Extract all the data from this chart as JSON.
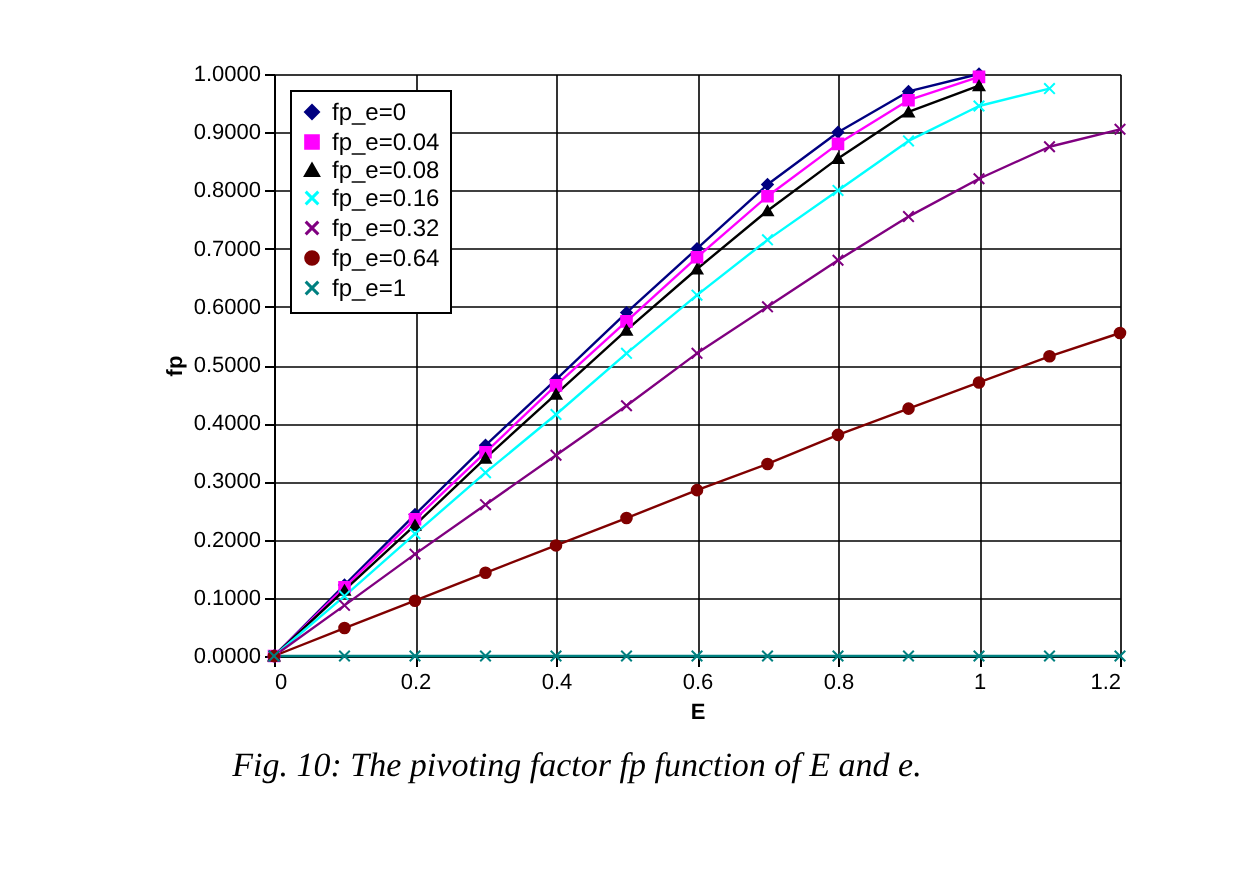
{
  "chart_data": {
    "type": "line",
    "xlabel": "E",
    "ylabel": "fp",
    "xlim": [
      0,
      1.2
    ],
    "xticks": [
      0,
      0.2,
      0.4,
      0.6,
      0.8,
      1,
      1.2
    ],
    "ylim": [
      0,
      1
    ],
    "yticks": [
      {
        "value": 0,
        "label": "0.0000"
      },
      {
        "value": 0.1,
        "label": "0.1000"
      },
      {
        "value": 0.2,
        "label": "0.2000"
      },
      {
        "value": 0.3,
        "label": "0.3000"
      },
      {
        "value": 0.4,
        "label": "0.4000"
      },
      {
        "value": 0.5,
        "label": "0.5000"
      },
      {
        "value": 0.6,
        "label": "0.6000"
      },
      {
        "value": 0.7,
        "label": "0.7000"
      },
      {
        "value": 0.8,
        "label": "0.8000"
      },
      {
        "value": 0.9,
        "label": "0.9000"
      },
      {
        "value": 1,
        "label": "1.0000"
      }
    ],
    "grid": true,
    "legend": "top left",
    "line_style": "solid",
    "x": [
      0,
      0.1,
      0.2,
      0.3,
      0.4,
      0.5,
      0.6,
      0.7,
      0.8,
      0.9,
      1,
      1.1,
      1.2
    ],
    "series": [
      {
        "name": "fp_e=0",
        "color": "#000080",
        "marker": "diamond",
        "values": [
          0,
          0.122,
          0.243,
          0.362,
          0.475,
          0.59,
          0.7,
          0.81,
          0.9,
          0.97,
          1.0,
          null,
          null
        ]
      },
      {
        "name": "fp_e=0.04",
        "color": "#ff00ff",
        "marker": "square",
        "values": [
          0,
          0.118,
          0.235,
          0.35,
          0.465,
          0.575,
          0.685,
          0.79,
          0.88,
          0.955,
          0.995,
          null,
          null
        ]
      },
      {
        "name": "fp_e=0.08",
        "color": "#000000",
        "marker": "triangle",
        "values": [
          0,
          0.113,
          0.225,
          0.34,
          0.45,
          0.56,
          0.665,
          0.765,
          0.855,
          0.935,
          0.98,
          null,
          null
        ]
      },
      {
        "name": "fp_e=0.16",
        "color": "#00ffff",
        "marker": "cross",
        "values": [
          0,
          0.103,
          0.21,
          0.315,
          0.415,
          0.52,
          0.62,
          0.715,
          0.8,
          0.885,
          0.945,
          0.975,
          null
        ]
      },
      {
        "name": "fp_e=0.32",
        "color": "#800080",
        "marker": "cross",
        "values": [
          0,
          0.087,
          0.175,
          0.26,
          0.345,
          0.43,
          0.52,
          0.6,
          0.68,
          0.755,
          0.82,
          0.875,
          0.905
        ]
      },
      {
        "name": "fp_e=0.64",
        "color": "#800000",
        "marker": "circle",
        "values": [
          0,
          0.048,
          0.095,
          0.143,
          0.19,
          0.237,
          0.285,
          0.33,
          0.38,
          0.425,
          0.47,
          0.515,
          0.555
        ]
      },
      {
        "name": "fp_e=1",
        "color": "#008080",
        "marker": "cross",
        "values": [
          0,
          0,
          0,
          0,
          0,
          0,
          0,
          0,
          0,
          0,
          0,
          0,
          0
        ]
      }
    ],
    "annotations": [
      "Fig. 10: The pivoting factor fp function of E and e."
    ]
  }
}
